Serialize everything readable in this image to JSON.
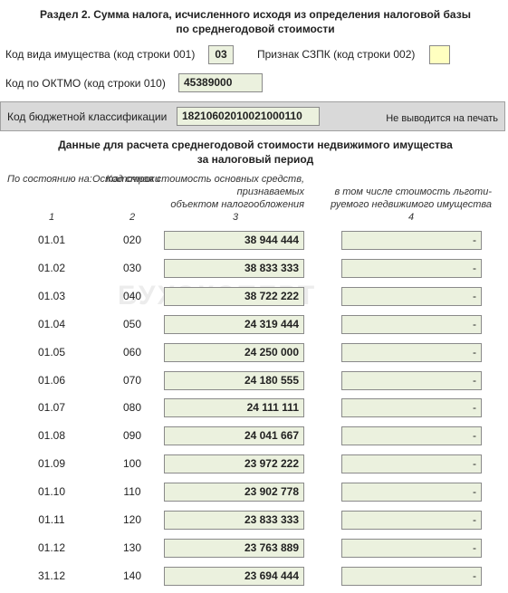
{
  "header": {
    "title": [
      "Раздел 2. Сумма налога, исчисленного исходя из определения налоговой базы",
      "по среднегодовой стоимости"
    ]
  },
  "fields": {
    "property_code": {
      "label": "Код вида имущества (код строки 001)",
      "value": "03"
    },
    "szpk": {
      "label": "Признак СЗПК (код строки 002)",
      "value": ""
    },
    "oktmo": {
      "label": "Код по ОКТМО (код строки 010)",
      "value": "45389000"
    },
    "kbk": {
      "label": "Код бюджетной классификации",
      "value": "18210602010021000110",
      "note": "Не выводится на печать"
    }
  },
  "watermark": "БУХЭКСПЕРТ",
  "table": {
    "title": [
      "Данные для расчета среднегодовой стоимости недвижимого имущества",
      "за налоговый период"
    ],
    "columns": [
      {
        "label": [
          "По состоянию на:"
        ],
        "number": "1"
      },
      {
        "label": [
          "Код строки"
        ],
        "number": "2"
      },
      {
        "label": [
          "Остаточная стоимость основных средств,",
          "признаваемых",
          "объектом налогообложения"
        ],
        "number": "3"
      },
      {
        "label": [
          "в том числе стоимость льготи-",
          "руемого недвижимого имущества"
        ],
        "number": "4"
      }
    ],
    "rows": [
      [
        "01.01",
        "020",
        "38 944 444",
        "-"
      ],
      [
        "01.02",
        "030",
        "38 833 333",
        "-"
      ],
      [
        "01.03",
        "040",
        "38 722 222",
        "-"
      ],
      [
        "01.04",
        "050",
        "24 319 444",
        "-"
      ],
      [
        "01.05",
        "060",
        "24 250 000",
        "-"
      ],
      [
        "01.06",
        "070",
        "24 180 555",
        "-"
      ],
      [
        "01.07",
        "080",
        "24 111 111",
        "-"
      ],
      [
        "01.08",
        "090",
        "24 041 667",
        "-"
      ],
      [
        "01.09",
        "100",
        "23 972 222",
        "-"
      ],
      [
        "01.10",
        "110",
        "23 902 778",
        "-"
      ],
      [
        "01.11",
        "120",
        "23 833 333",
        "-"
      ],
      [
        "01.12",
        "130",
        "23 763 889",
        "-"
      ],
      [
        "31.12",
        "140",
        "23 694 444",
        "-"
      ]
    ]
  }
}
